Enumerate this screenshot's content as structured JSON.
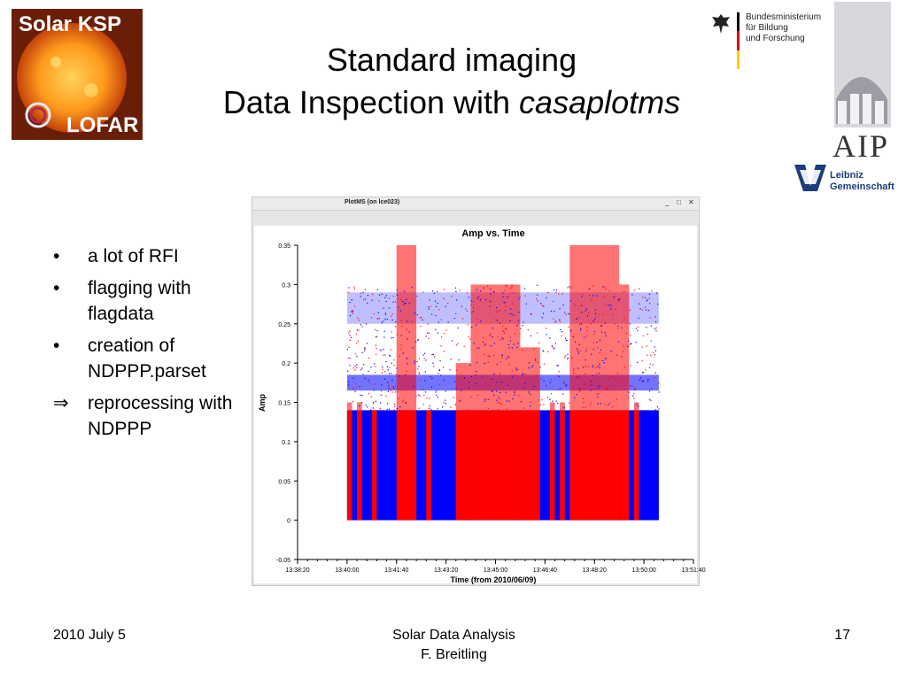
{
  "logos": {
    "solar_top": "Solar KSP",
    "solar_bottom": "LOFAR",
    "bmbf_lines": [
      "Bundesministerium",
      "für Bildung",
      "und Forschung"
    ],
    "aip": "AIP",
    "leibniz_lines": [
      "Leibniz",
      "Gemeinschaft"
    ]
  },
  "title": {
    "line1": "Standard imaging",
    "line2_prefix": "Data Inspection with ",
    "line2_italic": "casaplotms"
  },
  "bullets": [
    {
      "mark": "•",
      "text": "a lot of RFI"
    },
    {
      "mark": "•",
      "text": "flagging with flagdata"
    },
    {
      "mark": "•",
      "text": "creation of NDPPP.parset"
    },
    {
      "mark": "⇒",
      "text": "reprocessing with NDPPP"
    }
  ],
  "window": {
    "title": "PlotMS (on lce023)",
    "controls": [
      "_",
      "□",
      "✕"
    ]
  },
  "chart_data": {
    "type": "scatter",
    "title": "Amp vs. Time",
    "xlabel": "Time (from 2010/06/09)",
    "ylabel": "Amp",
    "ylim": [
      -0.05,
      0.35
    ],
    "yticks": [
      -0.05,
      0,
      0.05,
      0.1,
      0.15,
      0.2,
      0.25,
      0.3,
      0.35
    ],
    "ytick_labels": [
      "-0.05",
      "0",
      "0.05",
      "0.1",
      "0.15",
      "0.2",
      "0.25",
      "0.3",
      "0.35"
    ],
    "xticks": [
      "13:38:20",
      "13:40:00",
      "13:41:40",
      "13:43:20",
      "13:45:00",
      "13:46:40",
      "13:48:20",
      "13:50:00",
      "13:51:40"
    ],
    "xlim": [
      "13:38:20",
      "13:51:40"
    ],
    "series": [
      {
        "color": "#0000ff",
        "x_range": [
          "13:40:00",
          "13:50:30"
        ],
        "y_range": [
          0,
          0.29
        ]
      },
      {
        "color": "#ff0000",
        "x_range": [
          "13:40:00",
          "13:50:00"
        ],
        "y_range": [
          0,
          0.35
        ]
      }
    ],
    "grid": false
  },
  "footer": {
    "date": "2010 July 5",
    "center_line1": "Solar Data Analysis",
    "center_line2": "F. Breitling",
    "page": "17"
  }
}
